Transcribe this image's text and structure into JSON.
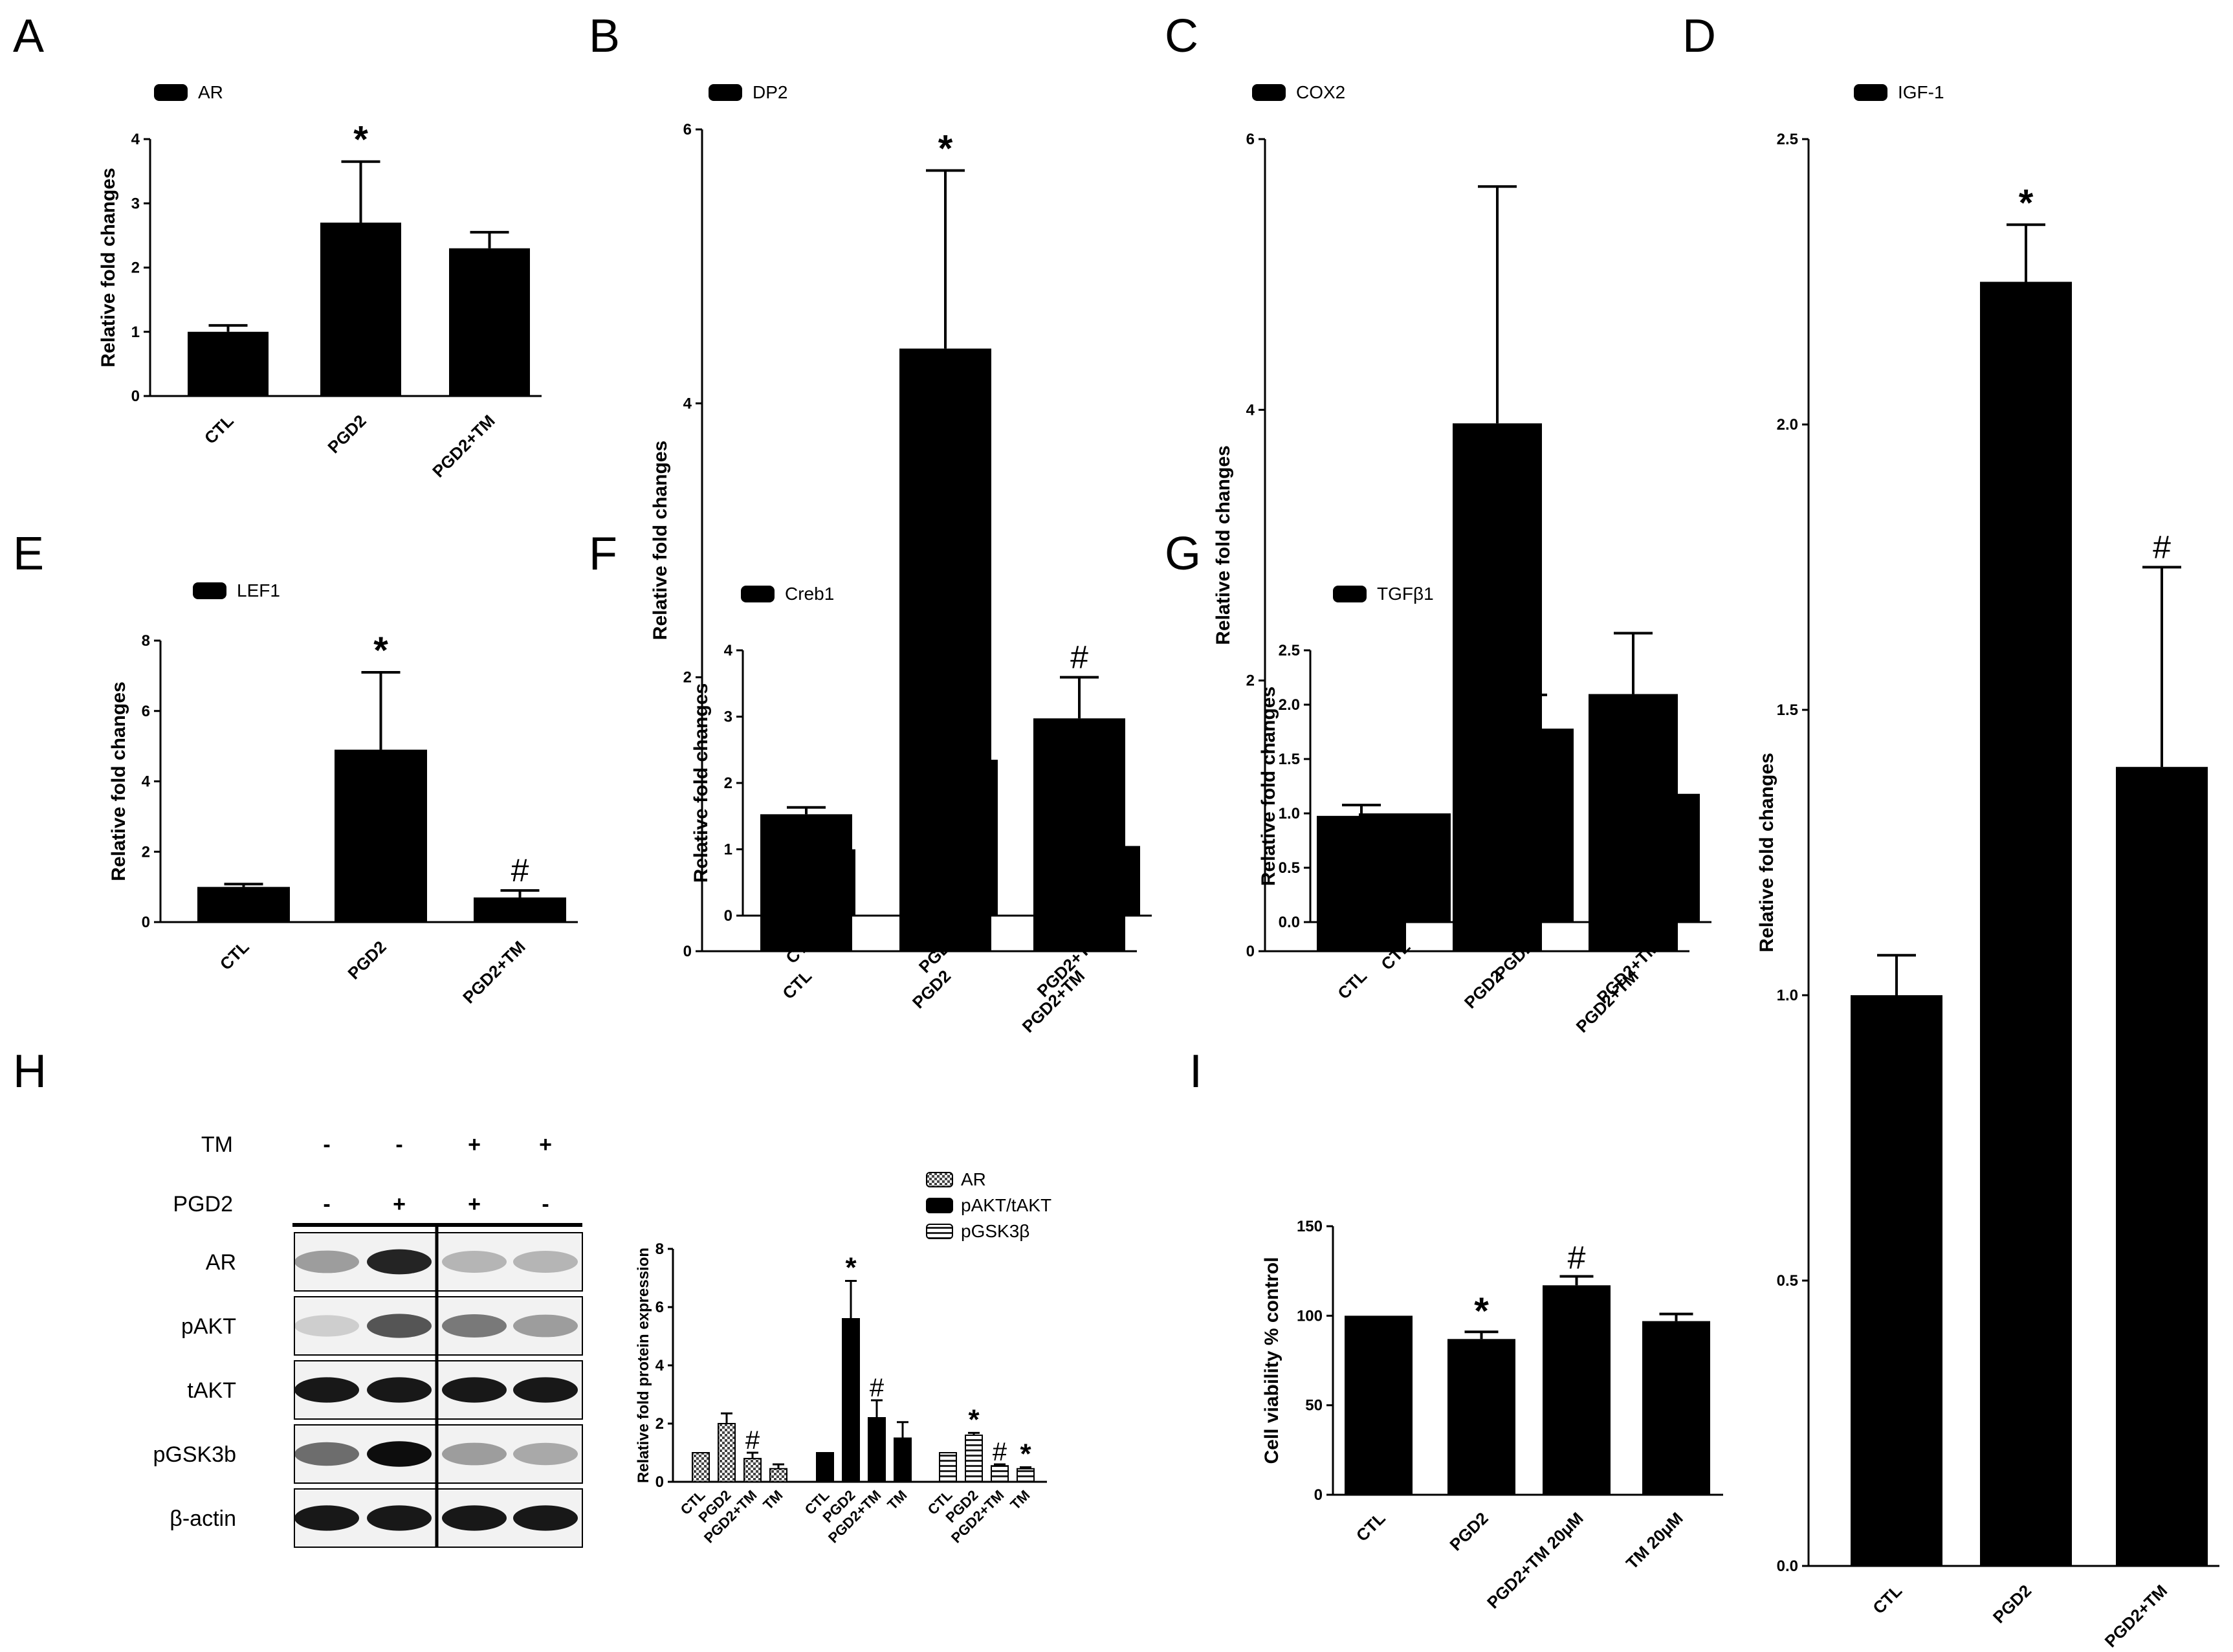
{
  "chart_data": [
    {
      "panel": "A",
      "type": "bar",
      "legend": "AR",
      "ylabel": "Relative fold changes",
      "categories": [
        "CTL",
        "PGD2",
        "PGD2+TM"
      ],
      "values": [
        1.0,
        2.7,
        2.3
      ],
      "errors": [
        0.1,
        0.95,
        0.25
      ],
      "marks": [
        "",
        "*",
        ""
      ],
      "ylim": [
        0,
        4
      ],
      "yticks": [
        "0",
        "1",
        "2",
        "3",
        "4"
      ]
    },
    {
      "panel": "B",
      "type": "bar",
      "legend": "DP2",
      "ylabel": "Relative fold changes",
      "categories": [
        "CTL",
        "PGD2",
        "PGD2+TM"
      ],
      "values": [
        1.0,
        4.4,
        1.7
      ],
      "errors": [
        0.05,
        1.3,
        0.3
      ],
      "marks": [
        "",
        "*",
        "#"
      ],
      "ylim": [
        0,
        6
      ],
      "yticks": [
        "0",
        "2",
        "4",
        "6"
      ]
    },
    {
      "panel": "C",
      "type": "bar",
      "legend": "COX2",
      "ylabel": "Relative fold changes",
      "categories": [
        "CTL",
        "PGD2",
        "PGD2+TM"
      ],
      "values": [
        1.0,
        3.9,
        1.9
      ],
      "errors": [
        0.08,
        1.75,
        0.45
      ],
      "marks": [
        "",
        "",
        ""
      ],
      "ylim": [
        0,
        6
      ],
      "yticks": [
        "0",
        "2",
        "4",
        "6"
      ]
    },
    {
      "panel": "D",
      "type": "bar",
      "legend": "IGF-1",
      "ylabel": "Relative fold changes",
      "categories": [
        "CTL",
        "PGD2",
        "PGD2+TM"
      ],
      "values": [
        1.0,
        2.25,
        1.4
      ],
      "errors": [
        0.07,
        0.1,
        0.35
      ],
      "marks": [
        "",
        "*",
        "#"
      ],
      "ylim": [
        0,
        2.5
      ],
      "yticks": [
        "0.0",
        "0.5",
        "1.0",
        "1.5",
        "2.0",
        "2.5"
      ]
    },
    {
      "panel": "E",
      "type": "bar",
      "legend": "LEF1",
      "ylabel": "Relative fold changes",
      "categories": [
        "CTL",
        "PGD2",
        "PGD2+TM"
      ],
      "values": [
        1.0,
        4.9,
        0.7
      ],
      "errors": [
        0.08,
        2.2,
        0.2
      ],
      "marks": [
        "",
        "*",
        "#"
      ],
      "ylim": [
        0,
        8
      ],
      "yticks": [
        "0",
        "2",
        "4",
        "6",
        "8"
      ]
    },
    {
      "panel": "F",
      "type": "bar",
      "legend": "Creb1",
      "ylabel": "Relative fold changes",
      "categories": [
        "CTL",
        "PGD2",
        "PGD2+TM"
      ],
      "values": [
        1.0,
        2.35,
        1.05
      ],
      "errors": [
        0.17,
        1.0,
        0.28
      ],
      "marks": [
        "",
        "",
        ""
      ],
      "ylim": [
        0,
        4
      ],
      "yticks": [
        "0",
        "1",
        "2",
        "3",
        "4"
      ]
    },
    {
      "panel": "G",
      "type": "bar",
      "legend": "TGFβ1",
      "ylabel": "Relative fold changes",
      "categories": [
        "CTL",
        "PGD2",
        "PGD2+TM"
      ],
      "values": [
        1.0,
        1.78,
        1.18
      ],
      "errors": [
        0.0,
        0.31,
        0.27
      ],
      "marks": [
        "",
        "*",
        ""
      ],
      "ylim": [
        0,
        2.5
      ],
      "yticks": [
        "0.0",
        "0.5",
        "1.0",
        "1.5",
        "2.0",
        "2.5"
      ]
    },
    {
      "panel": "H",
      "type": "bar",
      "ylabel": "Relative fold protein expression",
      "categories": [
        "CTL",
        "PGD2",
        "PGD2+TM",
        "TM"
      ],
      "series": [
        {
          "name": "AR",
          "values": [
            1.0,
            2.0,
            0.8,
            0.45
          ],
          "errors": [
            0,
            0.35,
            0.2,
            0.15
          ],
          "marks": [
            "",
            "",
            "#",
            ""
          ]
        },
        {
          "name": "pAKT/tAKT",
          "values": [
            1.0,
            5.6,
            2.2,
            1.5
          ],
          "errors": [
            0,
            1.3,
            0.6,
            0.55
          ],
          "marks": [
            "",
            "*",
            "#",
            ""
          ]
        },
        {
          "name": "pGSK3β",
          "values": [
            1.0,
            1.6,
            0.55,
            0.45
          ],
          "errors": [
            0,
            0.08,
            0.05,
            0.05
          ],
          "marks": [
            "",
            "*",
            "#",
            "*"
          ]
        }
      ],
      "ylim": [
        0,
        8
      ],
      "yticks": [
        "0",
        "2",
        "4",
        "6",
        "8"
      ]
    },
    {
      "panel": "I",
      "type": "bar",
      "ylabel": "Cell viability % control",
      "categories": [
        "CTL",
        "PGD2",
        "PGD2+TM 20μM",
        "TM 20μM"
      ],
      "values": [
        100,
        87,
        117,
        97
      ],
      "errors": [
        0,
        4,
        5,
        4
      ],
      "marks": [
        "",
        "*",
        "#",
        ""
      ],
      "ylim": [
        0,
        150
      ],
      "yticks": [
        "0",
        "50",
        "100",
        "150"
      ]
    }
  ],
  "blot": {
    "treatments": [
      {
        "label": "TM",
        "signs": [
          "-",
          "-",
          "+",
          "+"
        ]
      },
      {
        "label": "PGD2",
        "signs": [
          "-",
          "+",
          "+",
          "-"
        ]
      }
    ],
    "bands": [
      "AR",
      "pAKT",
      "tAKT",
      "pGSK3b",
      "β-actin"
    ],
    "intensity": [
      [
        0.35,
        0.85,
        0.25,
        0.25
      ],
      [
        0.15,
        0.65,
        0.5,
        0.35
      ],
      [
        0.9,
        0.9,
        0.9,
        0.9
      ],
      [
        0.55,
        0.95,
        0.35,
        0.3
      ],
      [
        0.9,
        0.9,
        0.9,
        0.9
      ]
    ]
  }
}
